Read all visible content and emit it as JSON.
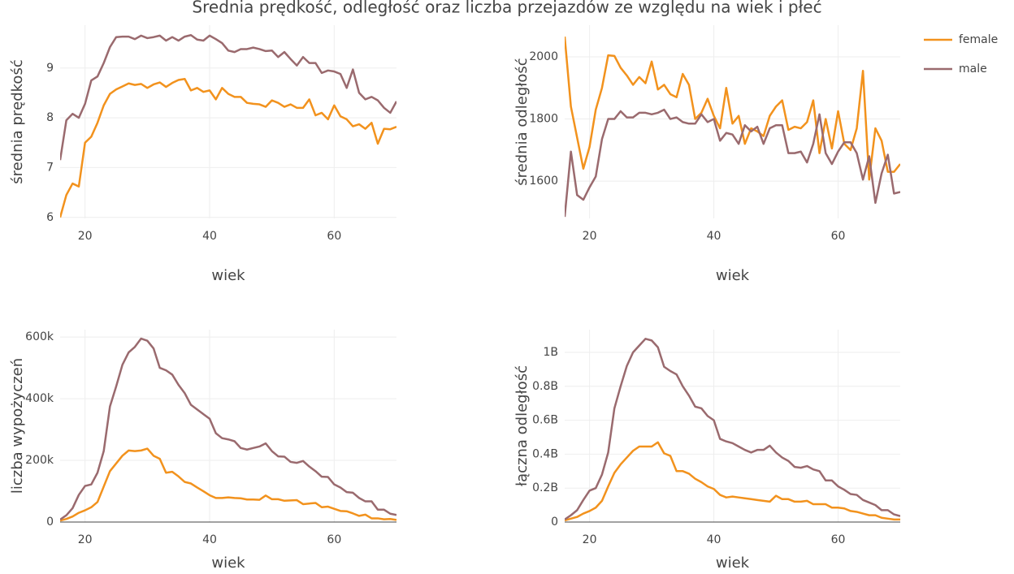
{
  "title": "Średnia prędkość, odległość oraz liczba przejazdów ze względu na wiek i płeć",
  "legend": [
    {
      "name": "female",
      "color": "#f2921d"
    },
    {
      "name": "male",
      "color": "#9a6a6e"
    }
  ],
  "chart_data": [
    {
      "type": "line",
      "xlabel": "wiek",
      "ylabel": "średnia prędkość",
      "x": [
        16,
        17,
        18,
        19,
        20,
        21,
        22,
        23,
        24,
        25,
        26,
        27,
        28,
        29,
        30,
        31,
        32,
        33,
        34,
        35,
        36,
        37,
        38,
        39,
        40,
        41,
        42,
        43,
        44,
        45,
        46,
        47,
        48,
        49,
        50,
        51,
        52,
        53,
        54,
        55,
        56,
        57,
        58,
        59,
        60,
        61,
        62,
        63,
        64,
        65,
        66,
        67,
        68,
        69,
        70
      ],
      "xlim": [
        16,
        70
      ],
      "xticks": [
        20,
        40,
        60
      ],
      "ylim": [
        5.98,
        9.86
      ],
      "yticks": [
        6,
        7,
        8,
        9
      ],
      "grid": true,
      "series": [
        {
          "values": [
            6.0,
            6.45,
            6.68,
            6.62,
            7.5,
            7.62,
            7.9,
            8.25,
            8.48,
            8.57,
            8.63,
            8.69,
            8.66,
            8.68,
            8.6,
            8.67,
            8.71,
            8.62,
            8.7,
            8.76,
            8.78,
            8.55,
            8.6,
            8.52,
            8.55,
            8.37,
            8.6,
            8.48,
            8.42,
            8.42,
            8.3,
            8.28,
            8.27,
            8.22,
            8.35,
            8.3,
            8.22,
            8.27,
            8.2,
            8.2,
            8.37,
            8.05,
            8.1,
            7.97,
            8.25,
            8.03,
            7.97,
            7.83,
            7.87,
            7.78,
            7.9,
            7.48,
            7.78,
            7.77,
            7.82
          ]
        },
        {
          "values": [
            7.15,
            7.95,
            8.08,
            8.0,
            8.28,
            8.75,
            8.83,
            9.1,
            9.42,
            9.62,
            9.63,
            9.63,
            9.58,
            9.65,
            9.6,
            9.62,
            9.65,
            9.55,
            9.62,
            9.55,
            9.63,
            9.66,
            9.57,
            9.55,
            9.65,
            9.58,
            9.5,
            9.35,
            9.32,
            9.38,
            9.38,
            9.41,
            9.38,
            9.34,
            9.35,
            9.22,
            9.32,
            9.18,
            9.05,
            9.22,
            9.1,
            9.1,
            8.9,
            8.95,
            8.93,
            8.88,
            8.6,
            8.97,
            8.5,
            8.37,
            8.42,
            8.35,
            8.2,
            8.1,
            8.33
          ]
        }
      ]
    },
    {
      "type": "line",
      "xlabel": "wiek",
      "ylabel": "średnia odległość",
      "x": [
        16,
        17,
        18,
        19,
        20,
        21,
        22,
        23,
        24,
        25,
        26,
        27,
        28,
        29,
        30,
        31,
        32,
        33,
        34,
        35,
        36,
        37,
        38,
        39,
        40,
        41,
        42,
        43,
        44,
        45,
        46,
        47,
        48,
        49,
        50,
        51,
        52,
        53,
        54,
        55,
        56,
        57,
        58,
        59,
        60,
        61,
        62,
        63,
        64,
        65,
        66,
        67,
        68,
        69,
        70
      ],
      "xlim": [
        16,
        70
      ],
      "xticks": [
        20,
        40,
        60
      ],
      "ylim": [
        1480,
        2102
      ],
      "yticks": [
        1600,
        1800,
        2000
      ],
      "grid": true,
      "series": [
        {
          "values": [
            2065,
            1840,
            1740,
            1640,
            1710,
            1830,
            1900,
            2005,
            2003,
            1965,
            1940,
            1910,
            1935,
            1915,
            1985,
            1895,
            1910,
            1880,
            1870,
            1945,
            1910,
            1800,
            1820,
            1865,
            1810,
            1770,
            1900,
            1785,
            1810,
            1720,
            1770,
            1760,
            1745,
            1810,
            1840,
            1860,
            1765,
            1775,
            1770,
            1790,
            1860,
            1690,
            1800,
            1705,
            1825,
            1720,
            1700,
            1770,
            1955,
            1605,
            1770,
            1730,
            1630,
            1630,
            1655
          ]
        },
        {
          "values": [
            1485,
            1695,
            1555,
            1540,
            1580,
            1615,
            1735,
            1800,
            1800,
            1825,
            1805,
            1805,
            1820,
            1820,
            1815,
            1820,
            1830,
            1800,
            1805,
            1790,
            1785,
            1785,
            1815,
            1790,
            1800,
            1730,
            1755,
            1750,
            1720,
            1780,
            1760,
            1775,
            1720,
            1770,
            1780,
            1780,
            1690,
            1690,
            1695,
            1660,
            1720,
            1815,
            1690,
            1655,
            1695,
            1725,
            1725,
            1690,
            1605,
            1680,
            1530,
            1625,
            1685,
            1560,
            1565
          ]
        }
      ]
    },
    {
      "type": "line",
      "xlabel": "wiek",
      "ylabel": "liczba wypożyczeń",
      "x": [
        16,
        17,
        18,
        19,
        20,
        21,
        22,
        23,
        24,
        25,
        26,
        27,
        28,
        29,
        30,
        31,
        32,
        33,
        34,
        35,
        36,
        37,
        38,
        39,
        40,
        41,
        42,
        43,
        44,
        45,
        46,
        47,
        48,
        49,
        50,
        51,
        52,
        53,
        54,
        55,
        56,
        57,
        58,
        59,
        60,
        61,
        62,
        63,
        64,
        65,
        66,
        67,
        68,
        69,
        70
      ],
      "xlim": [
        16,
        70
      ],
      "xticks": [
        20,
        40,
        60
      ],
      "ylim": [
        0,
        624000
      ],
      "yticks": [
        0,
        {
          "value": 200000,
          "label": "200k"
        },
        {
          "value": 400000,
          "label": "400k"
        },
        {
          "value": 600000,
          "label": "600k"
        }
      ],
      "grid": true,
      "series": [
        {
          "values": [
            5000,
            10000,
            18000,
            30000,
            38000,
            48000,
            65000,
            115000,
            165000,
            190000,
            215000,
            232000,
            230000,
            232000,
            238000,
            215000,
            205000,
            160000,
            163000,
            148000,
            130000,
            125000,
            112000,
            100000,
            87000,
            78000,
            78000,
            80000,
            78000,
            77000,
            73000,
            73000,
            72000,
            86000,
            74000,
            74000,
            69000,
            70000,
            71000,
            58000,
            60000,
            62000,
            48000,
            50000,
            43000,
            36000,
            35000,
            28000,
            20000,
            24000,
            12000,
            12000,
            9000,
            10000,
            7000
          ]
        },
        {
          "values": [
            8000,
            22000,
            45000,
            88000,
            117000,
            122000,
            160000,
            230000,
            375000,
            440000,
            510000,
            550000,
            568000,
            595000,
            588000,
            563000,
            500000,
            492000,
            478000,
            445000,
            418000,
            380000,
            365000,
            350000,
            335000,
            288000,
            272000,
            268000,
            262000,
            240000,
            235000,
            240000,
            245000,
            255000,
            230000,
            213000,
            212000,
            195000,
            192000,
            198000,
            180000,
            165000,
            147000,
            146000,
            122000,
            112000,
            97000,
            95000,
            78000,
            67000,
            67000,
            40000,
            40000,
            27000,
            23000
          ]
        }
      ]
    },
    {
      "type": "line",
      "xlabel": "wiek",
      "ylabel": "łączna odległość",
      "x": [
        16,
        17,
        18,
        19,
        20,
        21,
        22,
        23,
        24,
        25,
        26,
        27,
        28,
        29,
        30,
        31,
        32,
        33,
        34,
        35,
        36,
        37,
        38,
        39,
        40,
        41,
        42,
        43,
        44,
        45,
        46,
        47,
        48,
        49,
        50,
        51,
        52,
        53,
        54,
        55,
        56,
        57,
        58,
        59,
        60,
        61,
        62,
        63,
        64,
        65,
        66,
        67,
        68,
        69,
        70
      ],
      "xlim": [
        16,
        70
      ],
      "xticks": [
        20,
        40,
        60
      ],
      "ylim": [
        0,
        1134000000
      ],
      "yticks": [
        0,
        {
          "value": 200000000,
          "label": "0.2B"
        },
        {
          "value": 400000000,
          "label": "0.4B"
        },
        {
          "value": 600000000,
          "label": "0.6B"
        },
        {
          "value": 800000000,
          "label": "0.8B"
        },
        {
          "value": 1000000000,
          "label": "1B"
        }
      ],
      "grid": true,
      "series": [
        {
          "values": [
            10000000,
            20000000,
            30000000,
            50000000,
            65000000,
            85000000,
            125000000,
            210000000,
            290000000,
            340000000,
            380000000,
            420000000,
            445000000,
            445000000,
            445000000,
            470000000,
            405000000,
            390000000,
            300000000,
            300000000,
            285000000,
            255000000,
            235000000,
            210000000,
            195000000,
            160000000,
            145000000,
            150000000,
            145000000,
            140000000,
            135000000,
            130000000,
            125000000,
            120000000,
            155000000,
            135000000,
            135000000,
            120000000,
            120000000,
            125000000,
            105000000,
            105000000,
            105000000,
            85000000,
            85000000,
            80000000,
            65000000,
            60000000,
            50000000,
            40000000,
            40000000,
            25000000,
            20000000,
            15000000,
            15000000
          ]
        },
        {
          "values": [
            15000000,
            40000000,
            70000000,
            130000000,
            185000000,
            200000000,
            280000000,
            410000000,
            670000000,
            800000000,
            920000000,
            1000000000,
            1040000000,
            1080000000,
            1070000000,
            1030000000,
            915000000,
            890000000,
            870000000,
            800000000,
            745000000,
            680000000,
            670000000,
            625000000,
            600000000,
            490000000,
            475000000,
            465000000,
            445000000,
            425000000,
            410000000,
            425000000,
            425000000,
            450000000,
            410000000,
            380000000,
            360000000,
            325000000,
            320000000,
            330000000,
            310000000,
            300000000,
            245000000,
            245000000,
            210000000,
            190000000,
            165000000,
            160000000,
            130000000,
            115000000,
            100000000,
            70000000,
            70000000,
            45000000,
            35000000
          ]
        }
      ]
    }
  ]
}
